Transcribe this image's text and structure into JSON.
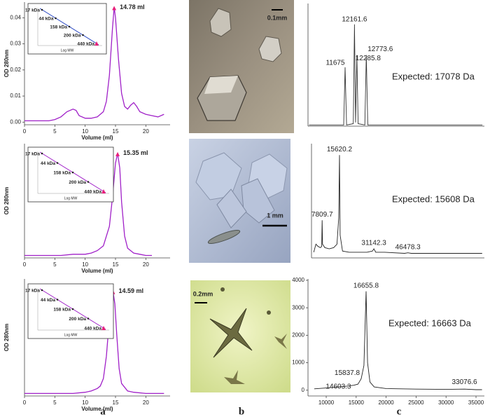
{
  "chart_data": [
    {
      "type": "line",
      "ylabel": "OD 280nm",
      "xlabel": "Volume (ml)",
      "xlim": [
        0,
        24
      ],
      "ylim": [
        -0.001,
        0.046
      ],
      "xticks": [
        0,
        5,
        10,
        15,
        20
      ],
      "yticks": [
        {
          "value": 0,
          "label": "0.00"
        },
        {
          "value": 0.01,
          "label": "0.01"
        },
        {
          "value": 0.02,
          "label": "0.02"
        },
        {
          "value": 0.03,
          "label": "0.03"
        },
        {
          "value": 0.04,
          "label": "0.04"
        }
      ],
      "series": [
        {
          "color": "#a020c8",
          "x": [
            0,
            2,
            4,
            5,
            6,
            7,
            8,
            8.5,
            9,
            10,
            11,
            12,
            13,
            13.5,
            14,
            14.5,
            14.78,
            15,
            15.5,
            16,
            16.5,
            17,
            17.5,
            18,
            18.5,
            19,
            20,
            21,
            22,
            23
          ],
          "values": [
            0.0005,
            0.0005,
            0.0005,
            0.001,
            0.002,
            0.004,
            0.005,
            0.0045,
            0.0025,
            0.0015,
            0.0015,
            0.002,
            0.004,
            0.008,
            0.018,
            0.036,
            0.044,
            0.04,
            0.024,
            0.011,
            0.006,
            0.005,
            0.0065,
            0.0075,
            0.006,
            0.004,
            0.003,
            0.0025,
            0.002,
            0.003
          ]
        }
      ],
      "annotations": [
        {
          "text": "14.78 ml",
          "x": 14.78,
          "y": 0.044
        }
      ],
      "inset": {
        "labels": [
          "17 kDa",
          "44 kDa",
          "158 kDa",
          "200 kDa",
          "440 kDa"
        ],
        "xlabel": "Log MW",
        "color": "#2040c0"
      }
    },
    {
      "type": "line",
      "ylabel": "OD 280nm",
      "xlabel": "Volume (ml)",
      "xlim": [
        0,
        24
      ],
      "ylim": [
        -0.001,
        0.046
      ],
      "xticks": [
        0,
        5,
        10,
        15,
        20
      ],
      "series": [
        {
          "color": "#a020c8",
          "x": [
            0,
            2,
            4,
            6,
            8,
            10,
            11,
            12,
            13,
            14,
            14.5,
            15,
            15.35,
            15.7,
            16,
            16.5,
            17,
            18,
            19,
            20,
            21
          ],
          "values": [
            0,
            0,
            0,
            0,
            0.0005,
            0.0005,
            0.001,
            0.002,
            0.004,
            0.012,
            0.024,
            0.038,
            0.042,
            0.036,
            0.022,
            0.008,
            0.003,
            0.001,
            0.0005,
            0,
            0
          ]
        }
      ],
      "annotations": [
        {
          "text": "15.35 ml",
          "x": 15.35,
          "y": 0.042
        }
      ],
      "inset": {
        "labels": [
          "17 kDa",
          "44 kDa",
          "158 kDa",
          "200 kDa",
          "440 kDa"
        ],
        "xlabel": "Log MW",
        "color": "#a020c8"
      }
    },
    {
      "type": "line",
      "ylabel": "OD 280nm",
      "xlabel": "Volume (ml)",
      "xlim": [
        0,
        24
      ],
      "ylim": [
        -0.001,
        0.046
      ],
      "xticks": [
        0,
        5,
        10,
        15,
        20
      ],
      "series": [
        {
          "color": "#a020c8",
          "x": [
            0,
            2,
            4,
            6,
            8,
            10,
            11,
            12,
            12.5,
            13,
            13.5,
            14,
            14.3,
            14.59,
            14.9,
            15.2,
            15.6,
            16,
            17,
            18,
            20,
            22,
            23
          ],
          "values": [
            0,
            0,
            0,
            0,
            0,
            0.0005,
            0.001,
            0.002,
            0.003,
            0.006,
            0.015,
            0.03,
            0.038,
            0.041,
            0.036,
            0.024,
            0.01,
            0.004,
            0.001,
            0.0005,
            0,
            0,
            0
          ]
        }
      ],
      "annotations": [
        {
          "text": "14.59 ml",
          "x": 14.59,
          "y": 0.041
        }
      ],
      "inset": {
        "labels": [
          "17 kDa",
          "44 kDa",
          "158 kDa",
          "200 kDa",
          "440 kDa"
        ],
        "xlabel": "Log MW",
        "color": "#a020c8"
      }
    },
    {
      "type": "line",
      "xlim": [
        9750,
        18900
      ],
      "ylim": [
        0,
        100
      ],
      "series": [
        {
          "color": "#333333",
          "x": [
            9800,
            11000,
            11600,
            11675,
            11750,
            12100,
            12161.6,
            12220,
            12285.8,
            12350,
            12700,
            12773.6,
            12850,
            14000,
            16000,
            18800
          ],
          "values": [
            1,
            1,
            1,
            48,
            1,
            2,
            83,
            3,
            58,
            2,
            1,
            58,
            1,
            1,
            1,
            1
          ]
        }
      ],
      "annotations": [
        {
          "text": "11675",
          "x": 11675,
          "y": 48
        },
        {
          "text": "12161.6",
          "x": 12161.6,
          "y": 83
        },
        {
          "text": "12285.8",
          "x": 12285.8,
          "y": 58
        },
        {
          "text": "12773.6",
          "x": 12773.6,
          "y": 58
        }
      ],
      "note": "Expected: 17078 Da"
    },
    {
      "type": "line",
      "xlim": [
        3000,
        81000
      ],
      "ylim": [
        0,
        100
      ],
      "series": [
        {
          "color": "#222222",
          "x": [
            4000,
            5000,
            6000,
            7000,
            7600,
            7809.7,
            8000,
            9000,
            11000,
            13000,
            14500,
            15300,
            15620.2,
            15900,
            17000,
            20000,
            28000,
            30500,
            31142.3,
            32000,
            36000,
            45000,
            46478.3,
            48000,
            60000,
            80000
          ],
          "values": [
            5,
            12,
            10,
            9,
            10,
            33,
            12,
            9,
            8,
            9,
            12,
            35,
            90,
            20,
            6,
            5,
            5,
            6,
            8,
            5,
            5,
            4,
            4.5,
            4,
            4,
            4
          ]
        }
      ],
      "annotations": [
        {
          "text": "15620.2",
          "x": 15620.2,
          "y": 90
        },
        {
          "text": "7809.7",
          "x": 7809.7,
          "y": 33
        },
        {
          "text": "31142.3",
          "x": 31142.3,
          "y": 8
        },
        {
          "text": "46478.3",
          "x": 46478.3,
          "y": 4.5
        }
      ],
      "note": "Expected: 15608 Da"
    },
    {
      "type": "line",
      "xlim": [
        6960,
        36400
      ],
      "ylim": [
        -210,
        4050
      ],
      "xticks": [
        10000,
        15000,
        20000,
        25000,
        30000,
        35000
      ],
      "yticks": [
        0,
        1000,
        2000,
        3000,
        4000
      ],
      "series": [
        {
          "color": "#222222",
          "x": [
            8000,
            10000,
            12000,
            13500,
            14603.3,
            15300,
            15837.8,
            16300,
            16655.8,
            16900,
            17300,
            18000,
            20000,
            25000,
            30000,
            33076.6,
            35000,
            36000
          ],
          "values": [
            50,
            80,
            120,
            150,
            180,
            220,
            420,
            900,
            3600,
            1000,
            300,
            120,
            60,
            40,
            30,
            40,
            20,
            20
          ]
        }
      ],
      "annotations": [
        {
          "text": "16655.8",
          "x": 16655.8,
          "y": 3600
        },
        {
          "text": "15837.8",
          "x": 15837.8,
          "y": 420
        },
        {
          "text": "14603.3",
          "x": 14603.3,
          "y": 180
        },
        {
          "text": "33076.6",
          "x": 33076.6,
          "y": 40
        }
      ],
      "note": "Expected: 16663 Da"
    }
  ],
  "images": [
    {
      "scale_label": "0.1mm"
    },
    {
      "scale_label": "1 mm"
    },
    {
      "scale_label": "0.2mm"
    }
  ],
  "panel_labels": [
    "a",
    "b",
    "c"
  ]
}
